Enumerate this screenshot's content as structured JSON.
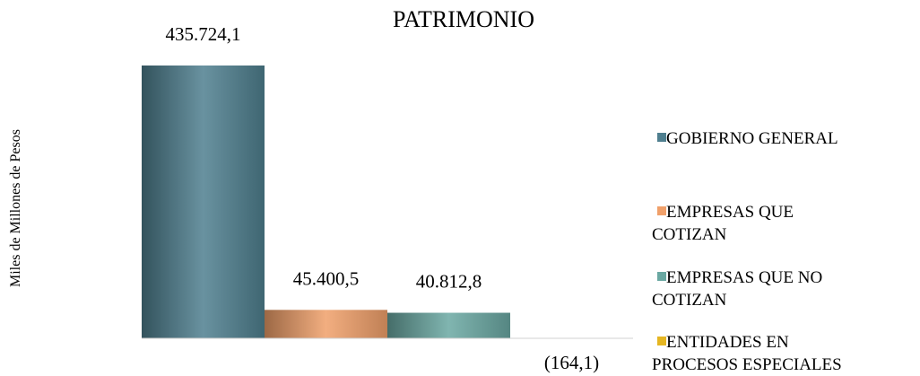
{
  "chart_data": {
    "type": "bar",
    "title": "PATRIMONIO",
    "ylabel": "Miles de Millones de Pesos",
    "xlabel": "",
    "series": [
      {
        "name": "GOBIERNO GENERAL",
        "value": 435724.1,
        "label": "435.724,1",
        "color": "#4f7f8f"
      },
      {
        "name": "EMPRESAS QUE COTIZAN",
        "value": 45400.5,
        "label": "45.400,5",
        "color": "#f0a06a"
      },
      {
        "name": "EMPRESAS QUE NO COTIZAN",
        "value": 40812.8,
        "label": "40.812,8",
        "color": "#6aa8a2"
      },
      {
        "name": "ENTIDADES EN PROCESOS ESPECIALES",
        "value": -164.1,
        "label": "(164,1)",
        "color": "#e5b622"
      }
    ],
    "legend_position": "right",
    "grid": false
  }
}
